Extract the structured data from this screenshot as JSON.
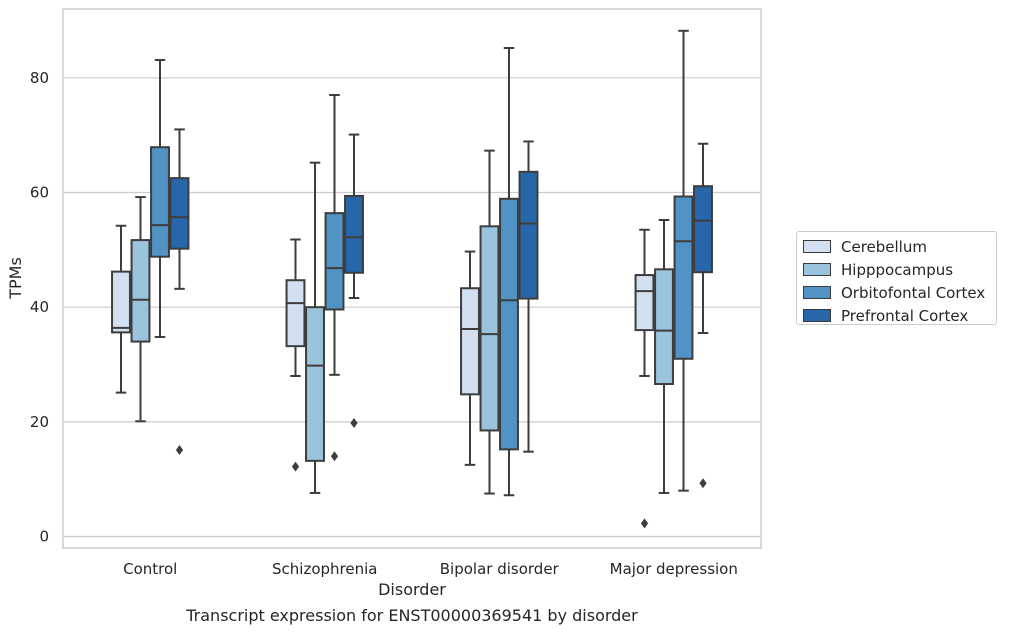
{
  "chart_data": {
    "type": "box",
    "title": "",
    "caption": "Transcript expression for ENST00000369541 by disorder",
    "xlabel": "Disorder",
    "ylabel": "TPMs",
    "ylim": [
      -2,
      92
    ],
    "yticks": [
      0,
      20,
      40,
      60,
      80
    ],
    "grid": "horizontal",
    "legend_position": "right",
    "categories": [
      "Control",
      "Schizophrenia",
      "Bipolar disorder",
      "Major depression"
    ],
    "series": [
      {
        "name": "Cerebellum",
        "color": "#d3e0f0",
        "boxes": [
          {
            "whislo": 25.1,
            "q1": 35.6,
            "med": 36.4,
            "q3": 46.2,
            "whishi": 54.2,
            "fliers": []
          },
          {
            "whislo": 28.0,
            "q1": 33.2,
            "med": 40.7,
            "q3": 44.7,
            "whishi": 51.8,
            "fliers": [
              12.2
            ]
          },
          {
            "whislo": 12.5,
            "q1": 24.8,
            "med": 36.2,
            "q3": 43.3,
            "whishi": 49.7,
            "fliers": []
          },
          {
            "whislo": 28.0,
            "q1": 36.0,
            "med": 42.8,
            "q3": 45.6,
            "whishi": 53.5,
            "fliers": [
              2.3
            ]
          }
        ]
      },
      {
        "name": "Hipppocampus",
        "color": "#9ac3dc",
        "boxes": [
          {
            "whislo": 20.1,
            "q1": 34.0,
            "med": 41.3,
            "q3": 51.7,
            "whishi": 59.2,
            "fliers": []
          },
          {
            "whislo": 7.6,
            "q1": 13.2,
            "med": 29.8,
            "q3": 40.0,
            "whishi": 65.2,
            "fliers": []
          },
          {
            "whislo": 7.5,
            "q1": 18.5,
            "med": 35.3,
            "q3": 54.1,
            "whishi": 67.3,
            "fliers": []
          },
          {
            "whislo": 7.6,
            "q1": 26.6,
            "med": 35.9,
            "q3": 46.6,
            "whishi": 55.2,
            "fliers": []
          }
        ]
      },
      {
        "name": "Orbitofontal Cortex",
        "color": "#5193c4",
        "boxes": [
          {
            "whislo": 34.8,
            "q1": 48.8,
            "med": 54.3,
            "q3": 67.9,
            "whishi": 83.1,
            "fliers": []
          },
          {
            "whislo": 28.2,
            "q1": 39.6,
            "med": 46.8,
            "q3": 56.4,
            "whishi": 77.0,
            "fliers": [
              14.0
            ]
          },
          {
            "whislo": 7.2,
            "q1": 15.2,
            "med": 41.2,
            "q3": 58.9,
            "whishi": 85.2,
            "fliers": []
          },
          {
            "whislo": 8.0,
            "q1": 31.0,
            "med": 51.5,
            "q3": 59.3,
            "whishi": 88.2,
            "fliers": []
          }
        ]
      },
      {
        "name": "Prefrontal Cortex",
        "color": "#2766a8",
        "boxes": [
          {
            "whislo": 43.2,
            "q1": 50.2,
            "med": 55.7,
            "q3": 62.5,
            "whishi": 71.0,
            "fliers": [
              15.1
            ]
          },
          {
            "whislo": 41.6,
            "q1": 46.0,
            "med": 52.2,
            "q3": 59.4,
            "whishi": 70.1,
            "fliers": [
              19.8
            ]
          },
          {
            "whislo": 14.8,
            "q1": 41.5,
            "med": 54.6,
            "q3": 63.6,
            "whishi": 68.9,
            "fliers": []
          },
          {
            "whislo": 35.5,
            "q1": 46.1,
            "med": 55.1,
            "q3": 61.1,
            "whishi": 68.5,
            "fliers": [
              9.3
            ]
          }
        ]
      }
    ]
  }
}
